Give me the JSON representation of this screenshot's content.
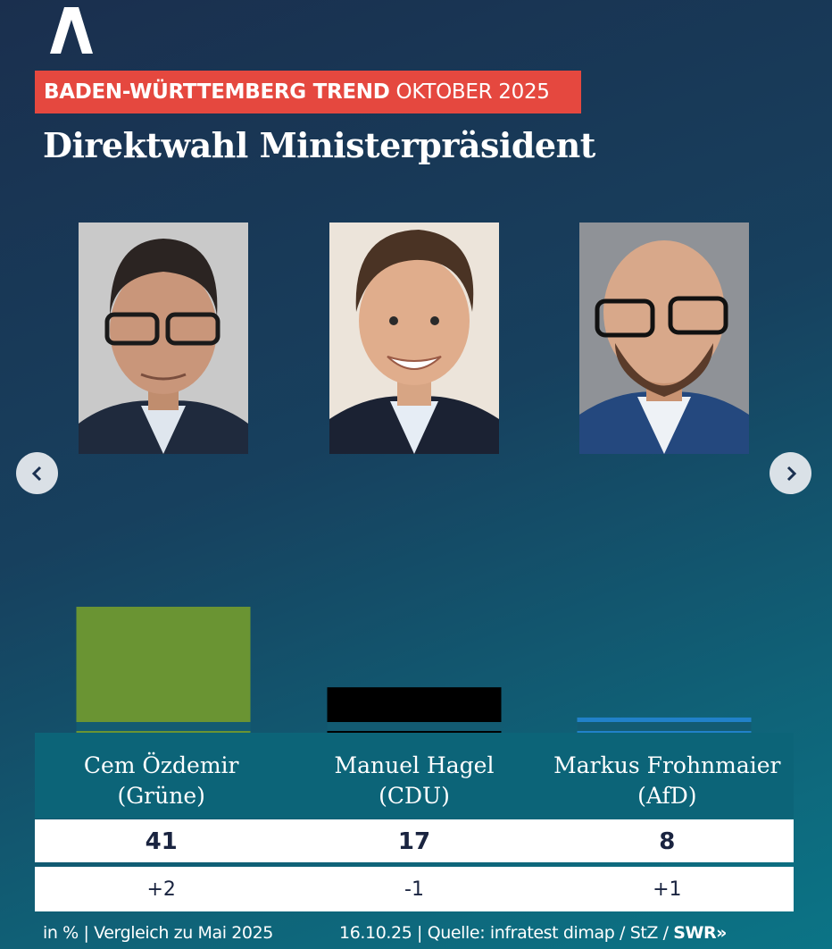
{
  "header": {
    "kicker_bold": "BADEN-WÜRTTEMBERG TREND",
    "kicker_normal": "OKTOBER 2025",
    "title": "Direktwahl Ministerpräsident",
    "logo_icon": "ard-logo-icon"
  },
  "nav": {
    "prev_icon": "chevron-left-icon",
    "next_icon": "chevron-right-icon"
  },
  "chart_data": {
    "type": "bar",
    "title": "Direktwahl Ministerpräsident",
    "categories": [
      "Cem Özdemir (Grüne)",
      "Manuel Hagel (CDU)",
      "Markus Frohnmaier (AfD)"
    ],
    "values": [
      41,
      17,
      8
    ],
    "changes": [
      "+2",
      "-1",
      "+1"
    ],
    "colors": [
      "#6a9433",
      "#000000",
      "#2181c9"
    ],
    "candidates": [
      {
        "name": "Cem Özdemir",
        "party": "(Grüne)",
        "value": "41",
        "change": "+2"
      },
      {
        "name": "Manuel Hagel",
        "party": "(CDU)",
        "value": "17",
        "change": "-1"
      },
      {
        "name": "Markus Frohnmaier",
        "party": "(AfD)",
        "value": "8",
        "change": "+1"
      }
    ],
    "ylim": [
      0,
      41
    ],
    "grid": false,
    "legend": "none"
  },
  "footer": {
    "left": "in % | Vergleich zu Mai 2025",
    "right": "16.10.25 | Quelle: infratest dimap / StZ /",
    "brand": "SWR»"
  }
}
